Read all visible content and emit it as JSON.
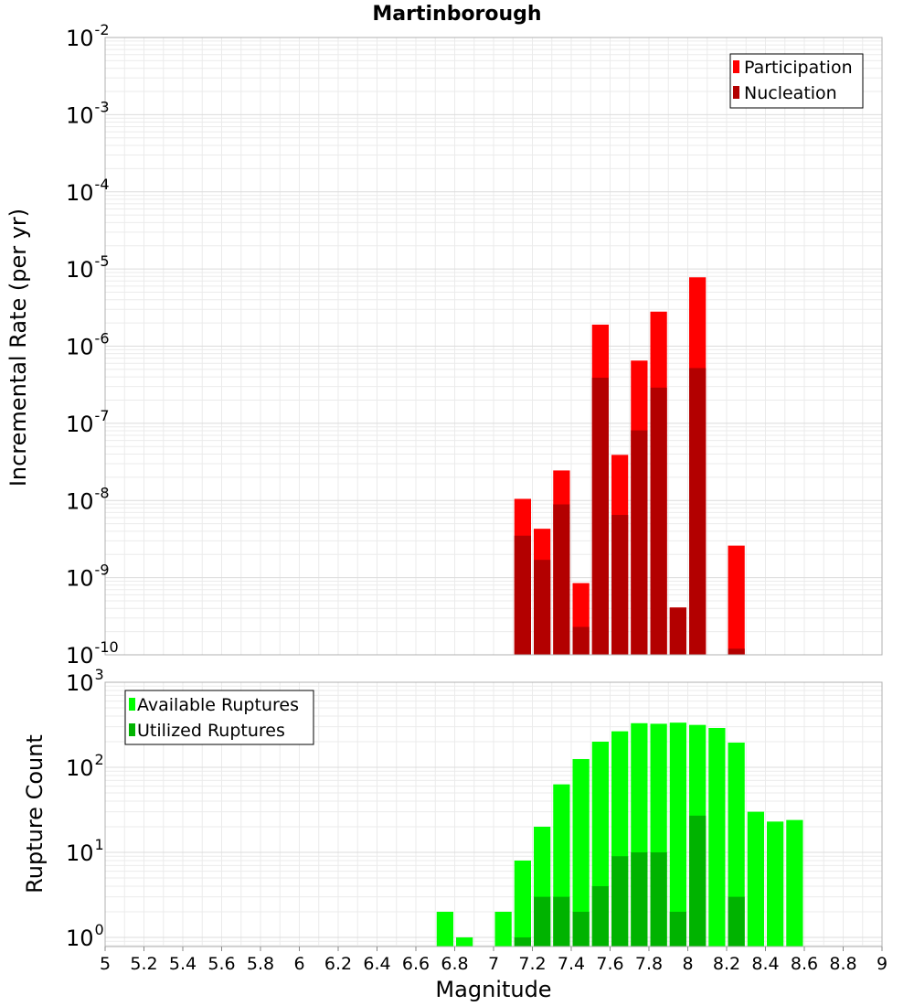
{
  "title": "Martinborough",
  "x_axis": {
    "label": "Magnitude",
    "range": [
      5,
      9
    ],
    "ticks": [
      "5",
      "5.2",
      "5.4",
      "5.6",
      "5.8",
      "6",
      "6.2",
      "6.4",
      "6.6",
      "6.8",
      "7",
      "7.2",
      "7.4",
      "7.6",
      "7.8",
      "8",
      "8.2",
      "8.4",
      "8.6",
      "8.8",
      "9"
    ]
  },
  "colors": {
    "participation": "#ff0000",
    "nucleation": "#b30000",
    "available": "#00ff00",
    "utilized": "#00b300",
    "grid": "#ebebeb",
    "frame": "#b0b0b0"
  },
  "chart_data": [
    {
      "type": "bar",
      "scale": "log",
      "ylabel": "Incremental Rate (per yr)",
      "ylim": [
        1e-10,
        0.01
      ],
      "y_ticks": [
        {
          "base": "10",
          "exp": "-2"
        },
        {
          "base": "10",
          "exp": "-3"
        },
        {
          "base": "10",
          "exp": "-4"
        },
        {
          "base": "10",
          "exp": "-5"
        },
        {
          "base": "10",
          "exp": "-6"
        },
        {
          "base": "10",
          "exp": "-7"
        },
        {
          "base": "10",
          "exp": "-8"
        },
        {
          "base": "10",
          "exp": "-9"
        },
        {
          "base": "10",
          "exp": "-10"
        }
      ],
      "legend_position": "top-right",
      "x": [
        7.15,
        7.25,
        7.35,
        7.45,
        7.55,
        7.65,
        7.75,
        7.85,
        7.95,
        8.05,
        8.15,
        8.25
      ],
      "series": [
        {
          "name": "Participation",
          "values": [
            1.05e-08,
            4.3e-09,
            2.45e-08,
            8.5e-10,
            1.9e-06,
            3.9e-08,
            6.5e-07,
            2.8e-06,
            4.1e-10,
            7.8e-06,
            null,
            2.6e-09
          ]
        },
        {
          "name": "Nucleation",
          "values": [
            3.5e-09,
            1.7e-09,
            8.9e-09,
            2.3e-10,
            3.9e-07,
            6.5e-09,
            8.1e-08,
            2.9e-07,
            4.1e-10,
            5.2e-07,
            null,
            1.2e-10
          ]
        }
      ]
    },
    {
      "type": "bar",
      "scale": "log",
      "ylabel": "Rupture Count",
      "ylim": [
        0.78,
        1000
      ],
      "y_ticks": [
        {
          "base": "10",
          "exp": "3"
        },
        {
          "base": "10",
          "exp": "2"
        },
        {
          "base": "10",
          "exp": "1"
        },
        {
          "base": "10",
          "exp": "0"
        }
      ],
      "legend_position": "top-left",
      "x": [
        6.75,
        6.85,
        6.95,
        7.05,
        7.15,
        7.25,
        7.35,
        7.45,
        7.55,
        7.65,
        7.75,
        7.85,
        7.95,
        8.05,
        8.15,
        8.25,
        8.35,
        8.45,
        8.55
      ],
      "series": [
        {
          "name": "Available Ruptures",
          "values": [
            2,
            1,
            null,
            2,
            8,
            20,
            63,
            125,
            200,
            265,
            330,
            325,
            335,
            315,
            290,
            195,
            30,
            23,
            24
          ]
        },
        {
          "name": "Utilized Ruptures",
          "values": [
            null,
            null,
            null,
            null,
            1,
            3,
            3,
            2,
            4,
            9,
            10,
            10,
            2,
            27,
            null,
            3,
            null,
            null,
            null
          ]
        }
      ]
    }
  ]
}
